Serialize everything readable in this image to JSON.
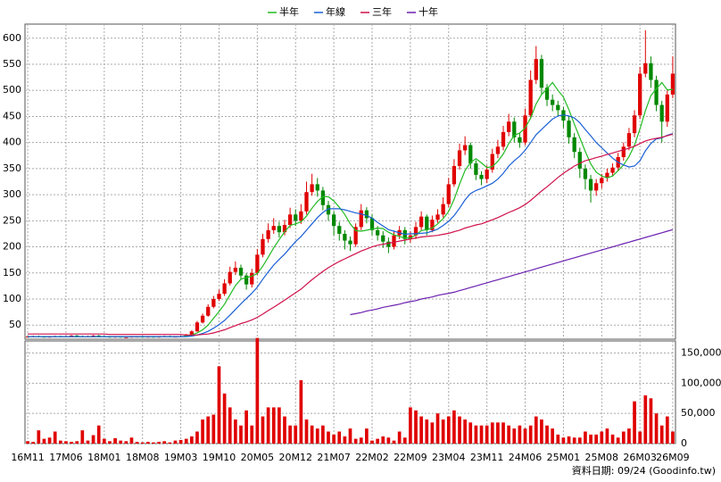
{
  "chart_data": {
    "type": "candlestick",
    "categories": [
      "16M11",
      null,
      null,
      null,
      null,
      null,
      null,
      "17M06",
      null,
      null,
      null,
      null,
      null,
      null,
      "18M01",
      null,
      null,
      null,
      null,
      null,
      null,
      "18M08",
      null,
      null,
      null,
      null,
      null,
      null,
      "19M03",
      null,
      null,
      null,
      null,
      null,
      null,
      "19M10",
      null,
      null,
      null,
      null,
      null,
      null,
      "20M05",
      null,
      null,
      null,
      null,
      null,
      null,
      "20M12",
      null,
      null,
      null,
      null,
      null,
      null,
      "21M07",
      null,
      null,
      null,
      null,
      null,
      null,
      "22M02",
      null,
      null,
      null,
      null,
      null,
      null,
      "22M09",
      null,
      null,
      null,
      null,
      null,
      null,
      "23M04",
      null,
      null,
      null,
      null,
      null,
      null,
      "23M11",
      null,
      null,
      null,
      null,
      null,
      null,
      "24M06",
      null,
      null,
      null,
      null,
      null,
      null,
      "25M01",
      null,
      null,
      null,
      null,
      null,
      null,
      "25M08",
      null,
      null,
      null,
      null,
      null,
      null,
      "26M03",
      null,
      null,
      null,
      null,
      null,
      "26M09"
    ],
    "open": [
      27,
      28,
      29,
      28,
      27,
      28,
      29,
      28,
      29,
      30,
      29,
      28,
      29,
      30,
      29,
      28,
      27,
      28,
      27,
      27,
      28,
      28,
      27,
      28,
      27,
      28,
      29,
      28,
      28,
      29,
      32,
      38,
      55,
      68,
      85,
      100,
      110,
      130,
      152,
      160,
      145,
      128,
      150,
      185,
      215,
      232,
      240,
      228,
      242,
      262,
      250,
      268,
      305,
      320,
      308,
      280,
      262,
      240,
      225,
      212,
      205,
      238,
      270,
      255,
      232,
      222,
      210,
      200,
      222,
      232,
      215,
      222,
      238,
      258,
      232,
      252,
      262,
      282,
      320,
      355,
      385,
      395,
      360,
      338,
      330,
      348,
      378,
      392,
      420,
      440,
      410,
      400,
      452,
      520,
      560,
      505,
      482,
      472,
      462,
      442,
      410,
      382,
      350,
      330,
      308,
      322,
      332,
      342,
      352,
      372,
      392,
      418,
      452,
      532,
      552,
      520,
      472,
      440,
      492
    ],
    "high": [
      29,
      30,
      30,
      29,
      29,
      30,
      30,
      30,
      31,
      31,
      30,
      30,
      31,
      31,
      30,
      29,
      29,
      29,
      28,
      29,
      29,
      29,
      29,
      29,
      29,
      30,
      30,
      29,
      30,
      33,
      40,
      58,
      72,
      90,
      106,
      118,
      138,
      162,
      172,
      166,
      150,
      158,
      196,
      225,
      245,
      255,
      248,
      252,
      275,
      272,
      282,
      325,
      340,
      332,
      315,
      288,
      268,
      248,
      232,
      220,
      245,
      282,
      276,
      262,
      240,
      230,
      218,
      230,
      240,
      238,
      230,
      248,
      268,
      262,
      260,
      272,
      295,
      332,
      368,
      398,
      412,
      400,
      366,
      345,
      356,
      388,
      405,
      432,
      455,
      448,
      418,
      465,
      538,
      585,
      568,
      512,
      492,
      480,
      468,
      450,
      418,
      390,
      358,
      338,
      330,
      340,
      350,
      360,
      380,
      400,
      428,
      462,
      545,
      615,
      565,
      528,
      480,
      500,
      565
    ],
    "low": [
      26,
      27,
      27,
      26,
      26,
      27,
      27,
      27,
      28,
      28,
      27,
      27,
      28,
      28,
      27,
      26,
      26,
      26,
      26,
      26,
      27,
      26,
      26,
      26,
      26,
      27,
      27,
      27,
      27,
      28,
      31,
      37,
      53,
      66,
      82,
      96,
      106,
      126,
      146,
      138,
      118,
      122,
      146,
      180,
      208,
      225,
      218,
      222,
      236,
      240,
      244,
      262,
      298,
      296,
      270,
      250,
      222,
      212,
      195,
      192,
      200,
      232,
      245,
      222,
      212,
      198,
      188,
      195,
      215,
      205,
      208,
      215,
      232,
      222,
      228,
      246,
      256,
      276,
      315,
      348,
      376,
      350,
      328,
      318,
      322,
      342,
      370,
      385,
      412,
      400,
      390,
      395,
      445,
      512,
      492,
      470,
      460,
      450,
      428,
      398,
      370,
      332,
      310,
      285,
      298,
      312,
      325,
      335,
      345,
      365,
      385,
      410,
      445,
      525,
      505,
      460,
      400,
      430,
      485
    ],
    "close": [
      28,
      29,
      28,
      27,
      28,
      29,
      28,
      29,
      30,
      29,
      28,
      29,
      30,
      29,
      28,
      27,
      28,
      27,
      27,
      28,
      28,
      27,
      28,
      27,
      28,
      29,
      28,
      28,
      29,
      32,
      38,
      55,
      68,
      85,
      100,
      110,
      130,
      152,
      160,
      145,
      128,
      150,
      185,
      215,
      232,
      240,
      228,
      242,
      262,
      250,
      268,
      305,
      320,
      308,
      280,
      262,
      240,
      225,
      212,
      205,
      238,
      270,
      255,
      232,
      222,
      210,
      200,
      222,
      232,
      215,
      222,
      238,
      258,
      232,
      252,
      262,
      282,
      320,
      355,
      385,
      395,
      360,
      338,
      330,
      348,
      378,
      392,
      420,
      440,
      410,
      400,
      452,
      520,
      560,
      505,
      482,
      472,
      462,
      442,
      410,
      382,
      350,
      330,
      308,
      322,
      332,
      342,
      352,
      372,
      392,
      418,
      452,
      532,
      552,
      520,
      472,
      440,
      492,
      532
    ],
    "up_color": "#e00000",
    "down_color": "#008800",
    "ylim": [
      23,
      627
    ],
    "yticks": [
      50,
      100,
      150,
      200,
      250,
      300,
      350,
      400,
      450,
      500,
      550,
      600
    ],
    "grid": true,
    "legend": "top",
    "series": [
      {
        "name": "半年",
        "color": "#22bb22",
        "values": [
          28,
          28,
          28,
          28,
          28,
          28,
          28,
          28,
          28,
          28,
          28,
          28,
          28,
          28,
          28,
          28,
          28,
          28,
          28,
          28,
          28,
          28,
          28,
          28,
          28,
          28,
          28,
          28,
          28,
          29,
          31,
          35,
          41,
          50,
          63,
          76,
          90,
          108,
          126,
          138,
          141,
          144,
          149,
          163,
          180,
          198,
          214,
          229,
          241,
          244,
          248,
          259,
          274,
          287,
          296,
          296,
          288,
          276,
          262,
          244,
          231,
          230,
          232,
          234,
          236,
          235,
          228,
          223,
          220,
          217,
          217,
          223,
          231,
          233,
          236,
          244,
          254,
          268,
          291,
          320,
          346,
          362,
          369,
          361,
          352,
          354,
          364,
          378,
          398,
          414,
          418,
          428,
          447,
          474,
          492,
          503,
          515,
          500,
          487,
          463,
          435,
          409,
          383,
          359,
          343,
          336,
          332,
          336,
          346,
          357,
          373,
          395,
          426,
          461,
          490,
          503,
          515,
          501,
          502
        ]
      },
      {
        "name": "年線",
        "color": "#1a5fd6",
        "values": [
          28,
          28,
          28,
          28,
          28,
          28,
          28,
          28,
          28,
          28,
          28,
          28,
          28,
          28,
          28,
          28,
          28,
          28,
          28,
          28,
          28,
          28,
          28,
          28,
          28,
          28,
          28,
          28,
          28,
          28,
          29,
          31,
          34,
          38,
          44,
          51,
          59,
          69,
          80,
          91,
          101,
          111,
          123,
          138,
          152,
          165,
          176,
          186,
          198,
          210,
          220,
          232,
          244,
          256,
          266,
          273,
          273,
          273,
          271,
          268,
          265,
          263,
          260,
          255,
          247,
          240,
          233,
          230,
          227,
          224,
          225,
          225,
          226,
          227,
          230,
          234,
          241,
          249,
          260,
          274,
          290,
          302,
          308,
          312,
          317,
          322,
          330,
          341,
          355,
          365,
          374,
          385,
          400,
          415,
          425,
          435,
          445,
          451,
          453,
          451,
          447,
          438,
          425,
          413,
          400,
          390,
          380,
          370,
          362,
          357,
          353,
          355,
          365,
          384,
          398,
          407,
          409,
          414,
          417
        ]
      },
      {
        "name": "三年",
        "color": "#d0104a",
        "values": [
          33,
          33,
          33,
          33,
          33,
          33,
          33,
          33,
          33,
          33,
          33,
          33,
          33,
          33,
          33,
          32,
          32,
          32,
          32,
          32,
          32,
          32,
          32,
          32,
          32,
          32,
          32,
          32,
          32,
          31,
          31,
          31,
          32,
          33,
          35,
          38,
          41,
          45,
          49,
          53,
          56,
          60,
          65,
          71,
          78,
          84,
          91,
          98,
          105,
          112,
          119,
          128,
          137,
          145,
          153,
          160,
          166,
          172,
          177,
          182,
          187,
          192,
          196,
          200,
          203,
          205,
          207,
          209,
          211,
          213,
          215,
          217,
          219,
          220,
          221,
          222,
          224,
          226,
          229,
          232,
          236,
          239,
          242,
          244,
          248,
          252,
          256,
          261,
          266,
          270,
          275,
          281,
          289,
          298,
          307,
          315,
          324,
          333,
          341,
          348,
          355,
          360,
          365,
          368,
          371,
          374,
          377,
          380,
          383,
          386,
          389,
          393,
          398,
          403,
          406,
          408,
          410,
          413,
          416
        ]
      },
      {
        "name": "十年",
        "color": "#6a1fb0",
        "values": [
          null,
          null,
          null,
          null,
          null,
          null,
          null,
          null,
          null,
          null,
          null,
          null,
          null,
          null,
          null,
          null,
          null,
          null,
          null,
          null,
          null,
          null,
          null,
          null,
          null,
          null,
          null,
          null,
          null,
          null,
          null,
          null,
          null,
          null,
          null,
          null,
          null,
          null,
          null,
          null,
          null,
          null,
          null,
          null,
          null,
          null,
          null,
          null,
          null,
          null,
          null,
          null,
          null,
          null,
          null,
          null,
          null,
          null,
          null,
          70,
          72,
          74,
          77,
          79,
          81,
          84,
          86,
          88,
          90,
          93,
          95,
          97,
          100,
          102,
          104,
          107,
          109,
          111,
          113,
          116,
          119,
          122,
          125,
          128,
          131,
          134,
          137,
          140,
          143,
          146,
          149,
          152,
          155,
          158,
          161,
          164,
          167,
          170,
          173,
          176,
          179,
          182,
          185,
          188,
          191,
          194,
          197,
          200,
          203,
          206,
          209,
          212,
          215,
          218,
          221,
          224,
          227,
          230,
          233
        ]
      }
    ],
    "volume": {
      "color": "#e00000",
      "ylim": [
        0,
        170000
      ],
      "yticks": [
        0,
        {
          "value": 50000,
          "label": "50,000"
        },
        {
          "value": 100000,
          "label": "100,000"
        },
        {
          "value": 150000,
          "label": "150,000"
        }
      ],
      "values": [
        4000,
        3000,
        22000,
        8000,
        10000,
        20000,
        5000,
        4000,
        3000,
        4000,
        22000,
        5000,
        14000,
        30000,
        8000,
        4000,
        9000,
        5000,
        4000,
        10000,
        3000,
        2000,
        3000,
        2000,
        3000,
        4000,
        2000,
        5000,
        6000,
        8000,
        12000,
        20000,
        40000,
        45000,
        48000,
        128000,
        83000,
        60000,
        40000,
        30000,
        55000,
        30000,
        175000,
        45000,
        60000,
        60000,
        60000,
        45000,
        30000,
        30000,
        105000,
        40000,
        30000,
        25000,
        30000,
        20000,
        15000,
        20000,
        12000,
        25000,
        8000,
        10000,
        25000,
        5000,
        8000,
        12000,
        10000,
        5000,
        20000,
        10000,
        60000,
        55000,
        45000,
        40000,
        35000,
        50000,
        40000,
        45000,
        55000,
        45000,
        40000,
        35000,
        30000,
        30000,
        30000,
        35000,
        35000,
        35000,
        30000,
        25000,
        30000,
        25000,
        30000,
        45000,
        40000,
        30000,
        25000,
        15000,
        10000,
        12000,
        10000,
        10000,
        20000,
        15000,
        15000,
        20000,
        25000,
        15000,
        10000,
        20000,
        25000,
        70000,
        20000,
        80000,
        75000,
        50000,
        30000,
        45000,
        20000
      ]
    },
    "note": "資料日期: 09/24 (Goodinfo.tw)"
  }
}
